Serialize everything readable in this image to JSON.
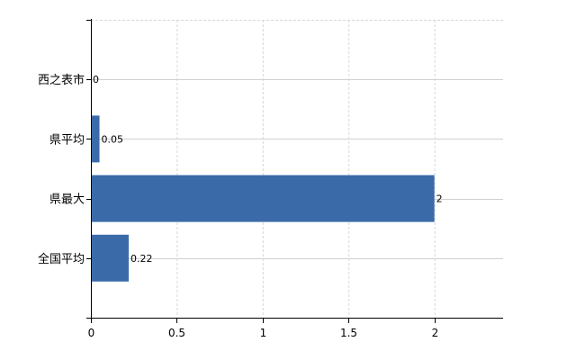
{
  "chart_data": {
    "type": "bar",
    "orientation": "horizontal",
    "categories": [
      "西之表市",
      "県平均",
      "県最大",
      "全国平均"
    ],
    "values": [
      0,
      0.05,
      2,
      0.22
    ],
    "data_labels": [
      "0",
      "0.05",
      "2",
      "0.22"
    ],
    "xticks": [
      "0",
      "0.5",
      "1",
      "1.5",
      "2"
    ],
    "xlim": [
      0,
      2.4
    ],
    "title": "",
    "xlabel": "",
    "ylabel": "",
    "grid": true,
    "bar_color": "#3b6aa8",
    "zero_label_color": "#1a7fd0"
  }
}
